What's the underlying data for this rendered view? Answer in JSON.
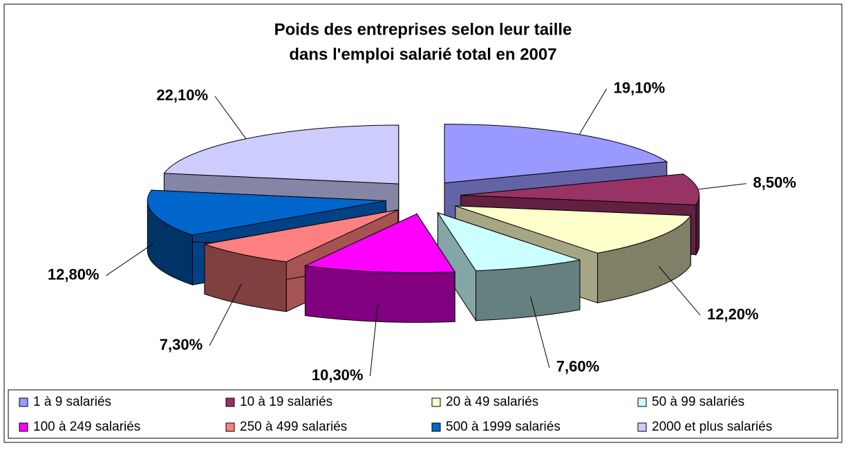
{
  "chart_data": {
    "type": "pie3d",
    "title": [
      "Poids des entreprises selon leur taille",
      "dans l'emploi salarié total en 2007"
    ],
    "categories": [
      "1 à 9 salariés",
      "10 à 19 salariés",
      "20 à 49 salariés",
      "50 à 99 salariés",
      "100 à 249 salariés",
      "250 à 499 salariés",
      "500 à 1999 salariés",
      "2000 et plus salariés"
    ],
    "values": [
      19.1,
      8.5,
      12.2,
      7.6,
      10.3,
      7.3,
      12.8,
      22.1
    ],
    "value_labels": [
      "19,10%",
      "8,50%",
      "12,20%",
      "7,60%",
      "10,30%",
      "7,30%",
      "12,80%",
      "22,10%"
    ],
    "colors": [
      "#9999ff",
      "#993366",
      "#ffffcc",
      "#ccffff",
      "#ff00ff",
      "#ff8080",
      "#0066cc",
      "#ccccff"
    ],
    "legend": "bottom"
  }
}
